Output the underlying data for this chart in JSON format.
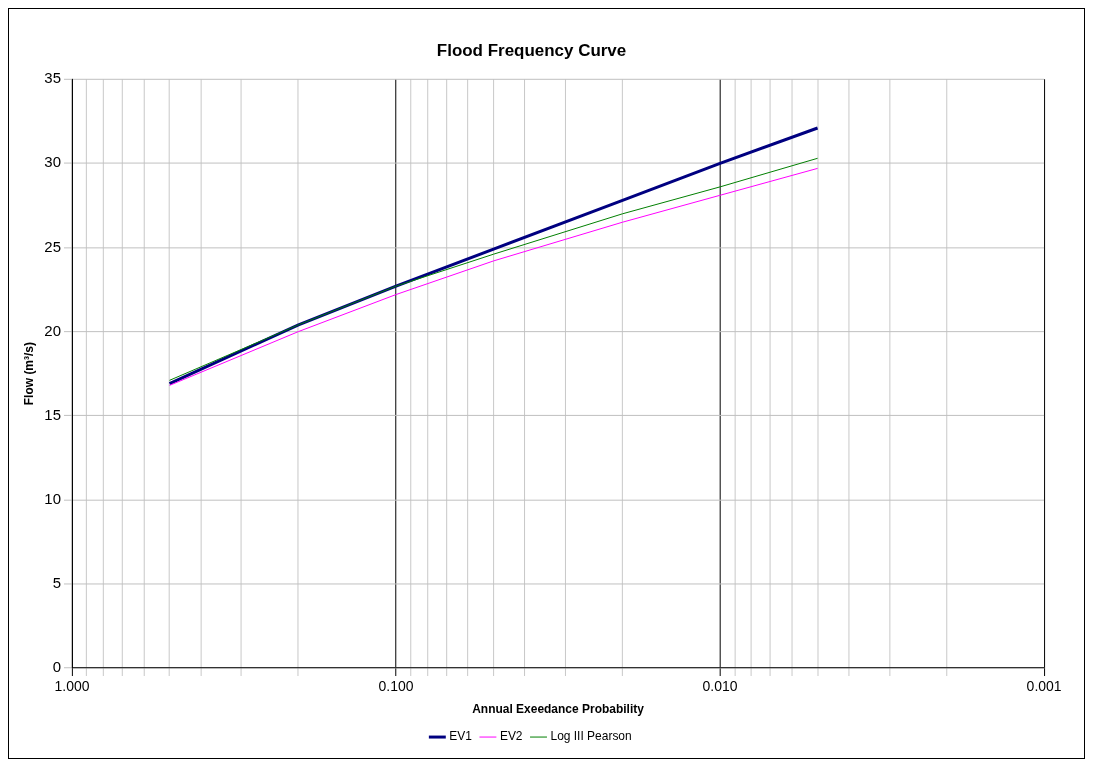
{
  "chart_data": {
    "type": "line",
    "title": "Flood Frequency Curve",
    "xlabel": "Annual Exeedance Probability",
    "ylabel": "Flow (m³/s)",
    "x": [
      0.5,
      0.2,
      0.1,
      0.05,
      0.02,
      0.01,
      0.005
    ],
    "series": [
      {
        "name": "EV1",
        "color": "#000080",
        "values": [
          16.9,
          20.4,
          22.7,
          24.9,
          27.8,
          30.0,
          32.1
        ]
      },
      {
        "name": "EV2",
        "color": "#ff00ff",
        "values": [
          16.8,
          20.0,
          22.2,
          24.2,
          26.5,
          28.1,
          29.7
        ]
      },
      {
        "name": "Log III Pearson",
        "color": "#008000",
        "values": [
          17.1,
          20.4,
          22.7,
          24.6,
          27.0,
          28.6,
          30.3
        ]
      }
    ],
    "log": "x",
    "xlim": [
      1,
      0.001
    ],
    "xticks": [
      {
        "value": 1,
        "label": "1.000"
      },
      {
        "value": 0.9,
        "label": null
      },
      {
        "value": 0.8,
        "label": null
      },
      {
        "value": 0.7,
        "label": null
      },
      {
        "value": 0.6,
        "label": null
      },
      {
        "value": 0.5,
        "label": null
      },
      {
        "value": 0.4,
        "label": null
      },
      {
        "value": 0.3,
        "label": null
      },
      {
        "value": 0.2,
        "label": null
      },
      {
        "value": 0.1,
        "label": "0.100"
      },
      {
        "value": 0.09,
        "label": null
      },
      {
        "value": 0.08,
        "label": null
      },
      {
        "value": 0.07,
        "label": null
      },
      {
        "value": 0.06,
        "label": null
      },
      {
        "value": 0.05,
        "label": null
      },
      {
        "value": 0.04,
        "label": null
      },
      {
        "value": 0.03,
        "label": null
      },
      {
        "value": 0.02,
        "label": null
      },
      {
        "value": 0.01,
        "label": "0.010"
      },
      {
        "value": 0.009,
        "label": null
      },
      {
        "value": 0.008,
        "label": null
      },
      {
        "value": 0.007,
        "label": null
      },
      {
        "value": 0.006,
        "label": null
      },
      {
        "value": 0.005,
        "label": null
      },
      {
        "value": 0.004,
        "label": null
      },
      {
        "value": 0.003,
        "label": null
      },
      {
        "value": 0.002,
        "label": null
      },
      {
        "value": 0.001,
        "label": "0.001"
      }
    ],
    "ylim": [
      0,
      35
    ],
    "yticks": [
      0,
      5,
      10,
      15,
      20,
      25,
      30,
      35
    ],
    "grid": true,
    "legend": "bottom",
    "marker": "none",
    "line_style": "solid"
  }
}
